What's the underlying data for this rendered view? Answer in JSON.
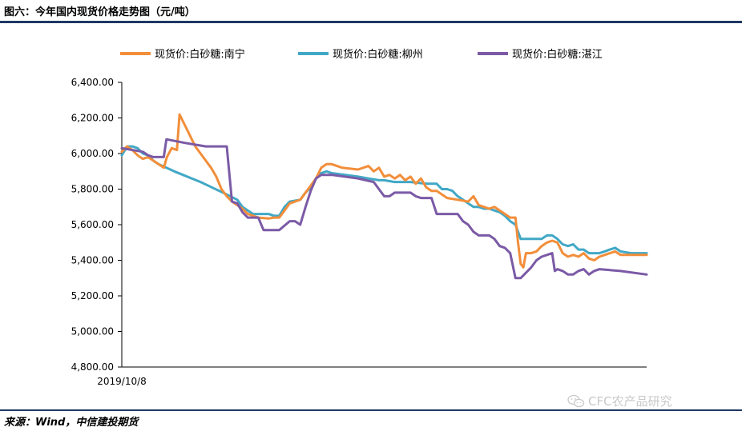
{
  "figure_title": "图六：今年国内现货价格走势图（元/吨）",
  "source_note": "来源：Wind，中信建投期货",
  "watermark_text": "CFC农产品研究",
  "chart_data": {
    "type": "line",
    "title": "",
    "xlabel": "",
    "ylabel": "",
    "ylim": [
      4800,
      6400
    ],
    "y_ticks": [
      4800,
      5000,
      5200,
      5400,
      5600,
      5800,
      6000,
      6200,
      6400
    ],
    "y_tick_labels": [
      "4,800.00",
      "5,000.00",
      "5,200.00",
      "5,400.00",
      "5,600.00",
      "5,800.00",
      "6,000.00",
      "6,200.00",
      "6,400.00"
    ],
    "x_tick_labels": [
      "2019/10/8"
    ],
    "x_range": [
      0,
      100
    ],
    "grid": false,
    "legend_position": "top",
    "series": [
      {
        "name": "现货价:白砂糖:南宁",
        "color": "#f28e3a",
        "points": [
          [
            0,
            6010
          ],
          [
            1,
            6040
          ],
          [
            2,
            6020
          ],
          [
            3,
            5990
          ],
          [
            4,
            5970
          ],
          [
            5,
            5980
          ],
          [
            6,
            5960
          ],
          [
            7,
            5940
          ],
          [
            8,
            5920
          ],
          [
            8.6,
            5980
          ],
          [
            9.5,
            6030
          ],
          [
            10.5,
            6020
          ],
          [
            11,
            6220
          ],
          [
            12,
            6160
          ],
          [
            13,
            6100
          ],
          [
            14,
            6040
          ],
          [
            15,
            6000
          ],
          [
            16,
            5960
          ],
          [
            17,
            5920
          ],
          [
            18,
            5870
          ],
          [
            19,
            5800
          ],
          [
            20,
            5760
          ],
          [
            21,
            5730
          ],
          [
            22,
            5710
          ],
          [
            23,
            5690
          ],
          [
            24,
            5660
          ],
          [
            26,
            5640
          ],
          [
            28,
            5635
          ],
          [
            29,
            5640
          ],
          [
            30,
            5640
          ],
          [
            31,
            5680
          ],
          [
            32,
            5720
          ],
          [
            33,
            5730
          ],
          [
            34,
            5740
          ],
          [
            35,
            5780
          ],
          [
            36,
            5820
          ],
          [
            37,
            5860
          ],
          [
            38,
            5920
          ],
          [
            39,
            5940
          ],
          [
            40,
            5940
          ],
          [
            41,
            5930
          ],
          [
            42,
            5920
          ],
          [
            45,
            5910
          ],
          [
            46,
            5920
          ],
          [
            47,
            5930
          ],
          [
            48,
            5900
          ],
          [
            49,
            5920
          ],
          [
            50,
            5870
          ],
          [
            51,
            5880
          ],
          [
            52,
            5860
          ],
          [
            53,
            5880
          ],
          [
            54,
            5850
          ],
          [
            55,
            5870
          ],
          [
            56,
            5830
          ],
          [
            57,
            5860
          ],
          [
            58,
            5810
          ],
          [
            59,
            5790
          ],
          [
            60,
            5790
          ],
          [
            61,
            5770
          ],
          [
            62,
            5750
          ],
          [
            64,
            5740
          ],
          [
            66,
            5730
          ],
          [
            67,
            5760
          ],
          [
            68,
            5710
          ],
          [
            69,
            5700
          ],
          [
            70,
            5690
          ],
          [
            71,
            5700
          ],
          [
            72,
            5680
          ],
          [
            73,
            5660
          ],
          [
            74,
            5640
          ],
          [
            75,
            5640
          ],
          [
            75.5,
            5500
          ],
          [
            76,
            5380
          ],
          [
            76.5,
            5360
          ],
          [
            77,
            5440
          ],
          [
            78,
            5440
          ],
          [
            79,
            5450
          ],
          [
            80,
            5480
          ],
          [
            81,
            5500
          ],
          [
            82,
            5510
          ],
          [
            83,
            5500
          ],
          [
            84,
            5440
          ],
          [
            85,
            5420
          ],
          [
            86,
            5430
          ],
          [
            87,
            5420
          ],
          [
            88,
            5440
          ],
          [
            89,
            5410
          ],
          [
            90,
            5400
          ],
          [
            91,
            5420
          ],
          [
            92,
            5430
          ],
          [
            93,
            5440
          ],
          [
            94,
            5450
          ],
          [
            95,
            5430
          ],
          [
            96,
            5430
          ],
          [
            98,
            5430
          ],
          [
            100,
            5430
          ]
        ]
      },
      {
        "name": "现货价:白砂糖:柳州",
        "color": "#41a8c6",
        "points": [
          [
            0,
            5990
          ],
          [
            1,
            6040
          ],
          [
            2,
            6040
          ],
          [
            3,
            6030
          ],
          [
            4,
            6000
          ],
          [
            5,
            5990
          ],
          [
            6,
            5960
          ],
          [
            7,
            5940
          ],
          [
            10,
            5900
          ],
          [
            15,
            5840
          ],
          [
            20,
            5770
          ],
          [
            22,
            5740
          ],
          [
            23,
            5700
          ],
          [
            24,
            5680
          ],
          [
            25,
            5660
          ],
          [
            28,
            5660
          ],
          [
            29,
            5650
          ],
          [
            30,
            5650
          ],
          [
            31,
            5700
          ],
          [
            32,
            5730
          ],
          [
            34,
            5740
          ],
          [
            35,
            5780
          ],
          [
            36,
            5810
          ],
          [
            37,
            5860
          ],
          [
            38,
            5890
          ],
          [
            39,
            5900
          ],
          [
            40,
            5890
          ],
          [
            45,
            5870
          ],
          [
            47,
            5860
          ],
          [
            49,
            5850
          ],
          [
            50,
            5850
          ],
          [
            52,
            5840
          ],
          [
            55,
            5840
          ],
          [
            58,
            5830
          ],
          [
            60,
            5830
          ],
          [
            61,
            5800
          ],
          [
            62,
            5800
          ],
          [
            63,
            5790
          ],
          [
            64,
            5760
          ],
          [
            65,
            5740
          ],
          [
            66,
            5720
          ],
          [
            67,
            5700
          ],
          [
            68,
            5700
          ],
          [
            69,
            5690
          ],
          [
            70,
            5690
          ],
          [
            71,
            5680
          ],
          [
            72,
            5670
          ],
          [
            73,
            5650
          ],
          [
            74,
            5620
          ],
          [
            75,
            5600
          ],
          [
            76,
            5520
          ],
          [
            80,
            5520
          ],
          [
            81,
            5540
          ],
          [
            82,
            5540
          ],
          [
            83,
            5520
          ],
          [
            84,
            5490
          ],
          [
            85,
            5480
          ],
          [
            86,
            5490
          ],
          [
            87,
            5460
          ],
          [
            88,
            5460
          ],
          [
            89,
            5440
          ],
          [
            90,
            5440
          ],
          [
            91,
            5440
          ],
          [
            92,
            5450
          ],
          [
            93,
            5460
          ],
          [
            94,
            5470
          ],
          [
            95,
            5450
          ],
          [
            97,
            5440
          ],
          [
            99,
            5440
          ],
          [
            100,
            5440
          ]
        ]
      },
      {
        "name": "现货价:白砂糖:湛江",
        "color": "#7b5aa6",
        "points": [
          [
            0,
            6030
          ],
          [
            4,
            6010
          ],
          [
            5,
            5990
          ],
          [
            6,
            5980
          ],
          [
            8,
            5980
          ],
          [
            8.5,
            6080
          ],
          [
            12,
            6060
          ],
          [
            16,
            6040
          ],
          [
            19,
            6040
          ],
          [
            20,
            6040
          ],
          [
            21,
            5730
          ],
          [
            22,
            5720
          ],
          [
            23,
            5670
          ],
          [
            24,
            5640
          ],
          [
            26,
            5640
          ],
          [
            27,
            5570
          ],
          [
            30,
            5570
          ],
          [
            32,
            5620
          ],
          [
            33,
            5620
          ],
          [
            34,
            5600
          ],
          [
            35,
            5700
          ],
          [
            36,
            5790
          ],
          [
            37,
            5860
          ],
          [
            38,
            5880
          ],
          [
            40,
            5880
          ],
          [
            45,
            5860
          ],
          [
            48,
            5840
          ],
          [
            49,
            5800
          ],
          [
            50,
            5760
          ],
          [
            51,
            5760
          ],
          [
            52,
            5780
          ],
          [
            55,
            5780
          ],
          [
            56,
            5760
          ],
          [
            57,
            5750
          ],
          [
            59,
            5750
          ],
          [
            60,
            5660
          ],
          [
            64,
            5660
          ],
          [
            65,
            5620
          ],
          [
            66,
            5600
          ],
          [
            67,
            5560
          ],
          [
            68,
            5540
          ],
          [
            70,
            5540
          ],
          [
            71,
            5520
          ],
          [
            72,
            5480
          ],
          [
            73,
            5470
          ],
          [
            74,
            5440
          ],
          [
            75,
            5300
          ],
          [
            76,
            5300
          ],
          [
            78,
            5360
          ],
          [
            79,
            5400
          ],
          [
            80,
            5420
          ],
          [
            81,
            5430
          ],
          [
            82,
            5440
          ],
          [
            82.5,
            5340
          ],
          [
            83,
            5350
          ],
          [
            84,
            5340
          ],
          [
            85,
            5320
          ],
          [
            86,
            5320
          ],
          [
            87,
            5340
          ],
          [
            88,
            5350
          ],
          [
            89,
            5320
          ],
          [
            90,
            5340
          ],
          [
            91,
            5350
          ],
          [
            95,
            5340
          ],
          [
            100,
            5320
          ]
        ]
      }
    ]
  }
}
